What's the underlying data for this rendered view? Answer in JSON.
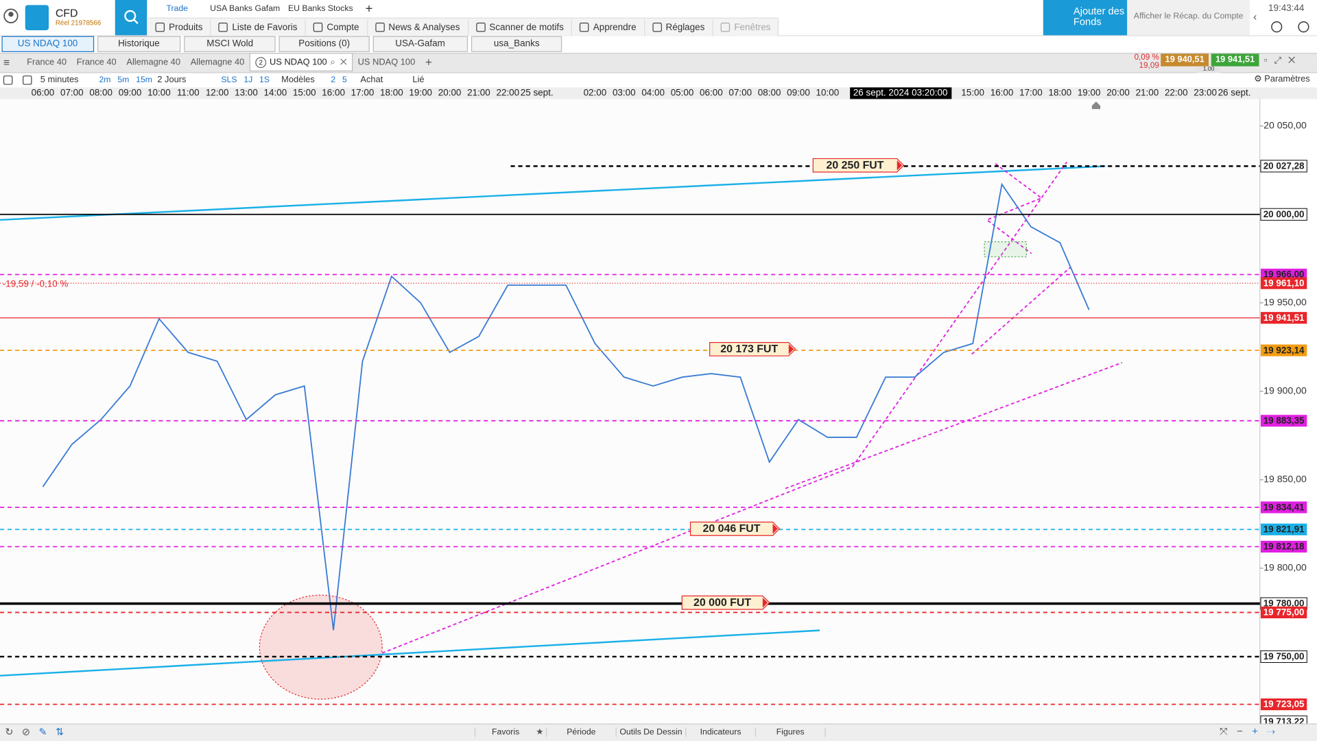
{
  "header": {
    "brand": "CFD",
    "account": "Réel 21978566",
    "menu_top": [
      "Trade",
      "USA Banks Gafam",
      "EU Banks Stocks"
    ],
    "menu": [
      "Produits",
      "Liste de Favoris",
      "Compte",
      "News & Analyses",
      "Scanner de motifs",
      "Apprendre",
      "Réglages",
      "Fenêtres"
    ],
    "fund_button": "Ajouter des Fonds",
    "summary": "Afficher le Récap. du Compte",
    "time": "19:43:44"
  },
  "tabs": [
    "US NDAQ 100",
    "Historique",
    "MSCI Wold",
    "Positions (0)",
    "USA-Gafam",
    "usa_Banks"
  ],
  "chart_tabs": [
    "France 40",
    "France 40",
    "Allemagne 40",
    "Allemagne 40",
    "US NDAQ 100",
    "US NDAQ 100"
  ],
  "chart_tab_badge": "2",
  "quote": {
    "change_pct": "0,09 %",
    "change": "19,09",
    "sell": "19 940,51",
    "buy": "19 941,51",
    "spread": "1.00"
  },
  "toolbar": {
    "interval": "5 minutes",
    "intervals": [
      "2m",
      "5m",
      "15m"
    ],
    "range": "2 Jours",
    "periods": [
      "SLS",
      "1J",
      "1S"
    ],
    "templates": "Modèles",
    "counts": [
      "2",
      "5"
    ],
    "order": "Achat",
    "link": "Lié",
    "settings": "Paramètres"
  },
  "chart_data": {
    "type": "line",
    "categories": [
      "06:00",
      "07:00",
      "08:00",
      "09:00",
      "10:00",
      "11:00",
      "12:00",
      "13:00",
      "14:00",
      "15:00",
      "16:00",
      "17:00",
      "18:00",
      "19:00",
      "20:00",
      "21:00",
      "22:00",
      "25 sept.",
      null,
      "02:00",
      "03:00",
      "04:00",
      "05:00",
      "06:00",
      "07:00",
      "08:00",
      "09:00",
      "10:00",
      null,
      null,
      null,
      null,
      "15:00",
      "16:00",
      "17:00",
      "18:00",
      "19:00",
      "20:00",
      "21:00",
      "22:00",
      "23:00",
      "26 sept."
    ],
    "values": [
      19846,
      19870,
      19884,
      19903,
      19941,
      19922,
      19917,
      19884,
      19898,
      19903,
      19765,
      19917,
      19965,
      19950,
      19922,
      19931,
      19960,
      19960,
      19960,
      19927,
      19908,
      19903,
      19908,
      19910,
      19908,
      19860,
      19884,
      19874,
      19874,
      19908,
      19908,
      19922,
      19927,
      20017,
      19993,
      19984,
      19946,
      null,
      null,
      null,
      null,
      null
    ],
    "color": "#3a7bd5",
    "ylim": [
      19712.2,
      20065.2
    ],
    "yticks": [
      {
        "value": 19800,
        "label": "19 800,00"
      },
      {
        "value": 19850,
        "label": "19 850,00"
      },
      {
        "value": 19900,
        "label": "19 900,00"
      },
      {
        "value": 19950,
        "label": "19 950,00"
      },
      {
        "value": 20050,
        "label": "20 050,00"
      }
    ],
    "levels": [
      {
        "value": 20027.28,
        "label": "20 027,28",
        "color": "#000000",
        "line": "dashed",
        "width": 2,
        "label_fill": "none"
      },
      {
        "value": 20000,
        "label": "20 000,00",
        "color": "#000000",
        "line": "solid",
        "width": 1.5,
        "label_fill": "none"
      },
      {
        "value": 19966,
        "label": "19 966,00",
        "color": "#e020e0",
        "line": "dashed",
        "width": 1.5,
        "label_fill": "dark"
      },
      {
        "value": 19961.1,
        "label": "19 961,10",
        "color": "#e8262b",
        "line": "dotted",
        "width": 1,
        "label_fill": "light"
      },
      {
        "value": 19941.51,
        "label": "19 941,51",
        "color": "#e8262b",
        "line": "solid",
        "width": 1,
        "label_fill": "light"
      },
      {
        "value": 19923.14,
        "label": "19 923,14",
        "color": "#f39c12",
        "line": "dashed",
        "width": 1.5,
        "label_fill": "dark"
      },
      {
        "value": 19883.35,
        "label": "19 883,35",
        "color": "#e020e0",
        "line": "dashed",
        "width": 1.5,
        "label_fill": "dark"
      },
      {
        "value": 19834.41,
        "label": "19 834,41",
        "color": "#e020e0",
        "line": "dashed",
        "width": 1.5,
        "label_fill": "dark"
      },
      {
        "value": 19821.91,
        "label": "19 821,91",
        "color": "#1ab0e8",
        "line": "dashed",
        "width": 1.5,
        "label_fill": "dark"
      },
      {
        "value": 19812.18,
        "label": "19 812,18",
        "color": "#e020e0",
        "line": "dashed",
        "width": 1.5,
        "label_fill": "dark"
      },
      {
        "value": 19780,
        "label": "19 780,00",
        "color": "#000000",
        "line": "solid",
        "width": 3,
        "label_fill": "none"
      },
      {
        "value": 19775,
        "label": "19 775,00",
        "color": "#e8262b",
        "line": "dashed",
        "width": 1.5,
        "label_fill": "light"
      },
      {
        "value": 19750,
        "label": "19 750,00",
        "color": "#000000",
        "line": "dashed",
        "width": 2,
        "label_fill": "none"
      },
      {
        "value": 19723.05,
        "label": "19 723,05",
        "color": "#e8262b",
        "line": "dashed",
        "width": 1.5,
        "label_fill": "light"
      },
      {
        "value": 19713.22,
        "label": "19 713,22",
        "color": "#000000",
        "line": "none",
        "width": 0,
        "label_fill": "none"
      }
    ],
    "annotations": [
      "20 250 FUT",
      "20 173 FUT",
      "20 046 FUT",
      "20 000 FUT"
    ],
    "change_label": "-19,59 / -0,10 %",
    "crosshair_label": "26 sept. 2024 03:20:00"
  },
  "footer": [
    "Favoris",
    "Période",
    "Outils De Dessin",
    "Indicateurs",
    "Figures"
  ]
}
